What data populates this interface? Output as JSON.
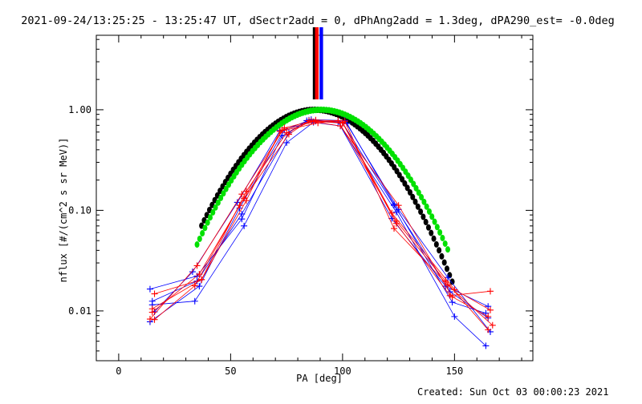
{
  "chart_data": {
    "type": "scatter",
    "title": "2021-09-24/13:25:25 - 13:25:47 UT, dSectr2add = 0, dPhAng2add = 1.3deg, dPA290_est= -0.0deg",
    "xlabel": "PA [deg]",
    "ylabel": "nflux [#/(cm^2 s sr MeV)]",
    "xlim": [
      -10,
      185
    ],
    "ylim": [
      0.0032,
      5.5
    ],
    "yscale": "log",
    "x_ticks": [
      0,
      50,
      100,
      150
    ],
    "x_tick_labels": [
      "0",
      "50",
      "100",
      "150"
    ],
    "y_ticks": [
      0.01,
      0.1,
      1.0
    ],
    "y_tick_labels": [
      "0.01",
      "0.10",
      "1.00"
    ],
    "grid": false,
    "footer": "Created: Sun Oct 03 00:00:23 2021",
    "colors": {
      "red": "#ff0000",
      "blue": "#0000ff",
      "black": "#000000",
      "green": "#00e000"
    },
    "markers": [
      {
        "x": 87.5,
        "color": "#000000"
      },
      {
        "x": 88.5,
        "color": "#ff0000"
      },
      {
        "x": 90.5,
        "color": "#0000ff"
      }
    ],
    "series": [
      {
        "color": "#0000ff",
        "x": [
          14,
          35,
          55,
          73,
          85,
          100,
          123,
          148,
          165
        ],
        "y": [
          0.0165,
          0.0222,
          0.082,
          0.55,
          0.79,
          0.74,
          0.112,
          0.0155,
          0.0085
        ]
      },
      {
        "color": "#0000ff",
        "x": [
          15,
          34,
          56,
          75,
          87,
          99,
          124,
          150,
          164
        ],
        "y": [
          0.0115,
          0.0125,
          0.07,
          0.47,
          0.75,
          0.69,
          0.096,
          0.0088,
          0.0045
        ]
      },
      {
        "color": "#0000ff",
        "x": [
          14,
          36,
          54,
          74,
          86,
          101,
          125,
          147,
          166
        ],
        "y": [
          0.0078,
          0.0176,
          0.105,
          0.63,
          0.8,
          0.78,
          0.102,
          0.0215,
          0.0062
        ]
      },
      {
        "color": "#0000ff",
        "x": [
          16,
          33,
          53,
          72,
          88,
          98,
          122,
          146,
          165
        ],
        "y": [
          0.0098,
          0.0245,
          0.12,
          0.62,
          0.77,
          0.76,
          0.083,
          0.0176,
          0.0111
        ]
      },
      {
        "color": "#0000ff",
        "x": [
          15,
          35,
          55,
          76,
          84,
          102,
          123,
          149,
          164
        ],
        "y": [
          0.0125,
          0.0198,
          0.092,
          0.59,
          0.78,
          0.73,
          0.115,
          0.0122,
          0.0095
        ]
      },
      {
        "color": "#ff0000",
        "x": [
          16,
          37,
          57,
          75,
          86,
          100,
          124,
          148,
          166
        ],
        "y": [
          0.0148,
          0.0205,
          0.155,
          0.59,
          0.77,
          0.74,
          0.074,
          0.0142,
          0.0157
        ]
      },
      {
        "color": "#ff0000",
        "x": [
          15,
          36,
          56,
          73,
          87,
          99,
          125,
          149,
          165
        ],
        "y": [
          0.0097,
          0.0232,
          0.132,
          0.63,
          0.76,
          0.69,
          0.112,
          0.0138,
          0.0088
        ]
      },
      {
        "color": "#ff0000",
        "x": [
          14,
          35,
          55,
          74,
          88,
          101,
          123,
          147,
          167
        ],
        "y": [
          0.0083,
          0.0282,
          0.145,
          0.66,
          0.79,
          0.77,
          0.066,
          0.0181,
          0.0072
        ]
      },
      {
        "color": "#ff0000",
        "x": [
          16,
          34,
          54,
          76,
          85,
          100,
          122,
          150,
          166
        ],
        "y": [
          0.0082,
          0.0178,
          0.112,
          0.57,
          0.78,
          0.75,
          0.094,
          0.0163,
          0.0102
        ]
      },
      {
        "color": "#ff0000",
        "x": [
          15,
          37,
          57,
          72,
          89,
          98,
          124,
          146,
          165
        ],
        "y": [
          0.0105,
          0.0205,
          0.125,
          0.61,
          0.74,
          0.78,
          0.078,
          0.0198,
          0.0065
        ]
      }
    ],
    "fits": [
      {
        "color": "#000000",
        "center": 87.5,
        "width": 31,
        "x_range": [
          37,
          149
        ]
      },
      {
        "color": "#00e000",
        "center": 90.5,
        "width": 31.6,
        "x_range": [
          35,
          147
        ]
      }
    ]
  }
}
